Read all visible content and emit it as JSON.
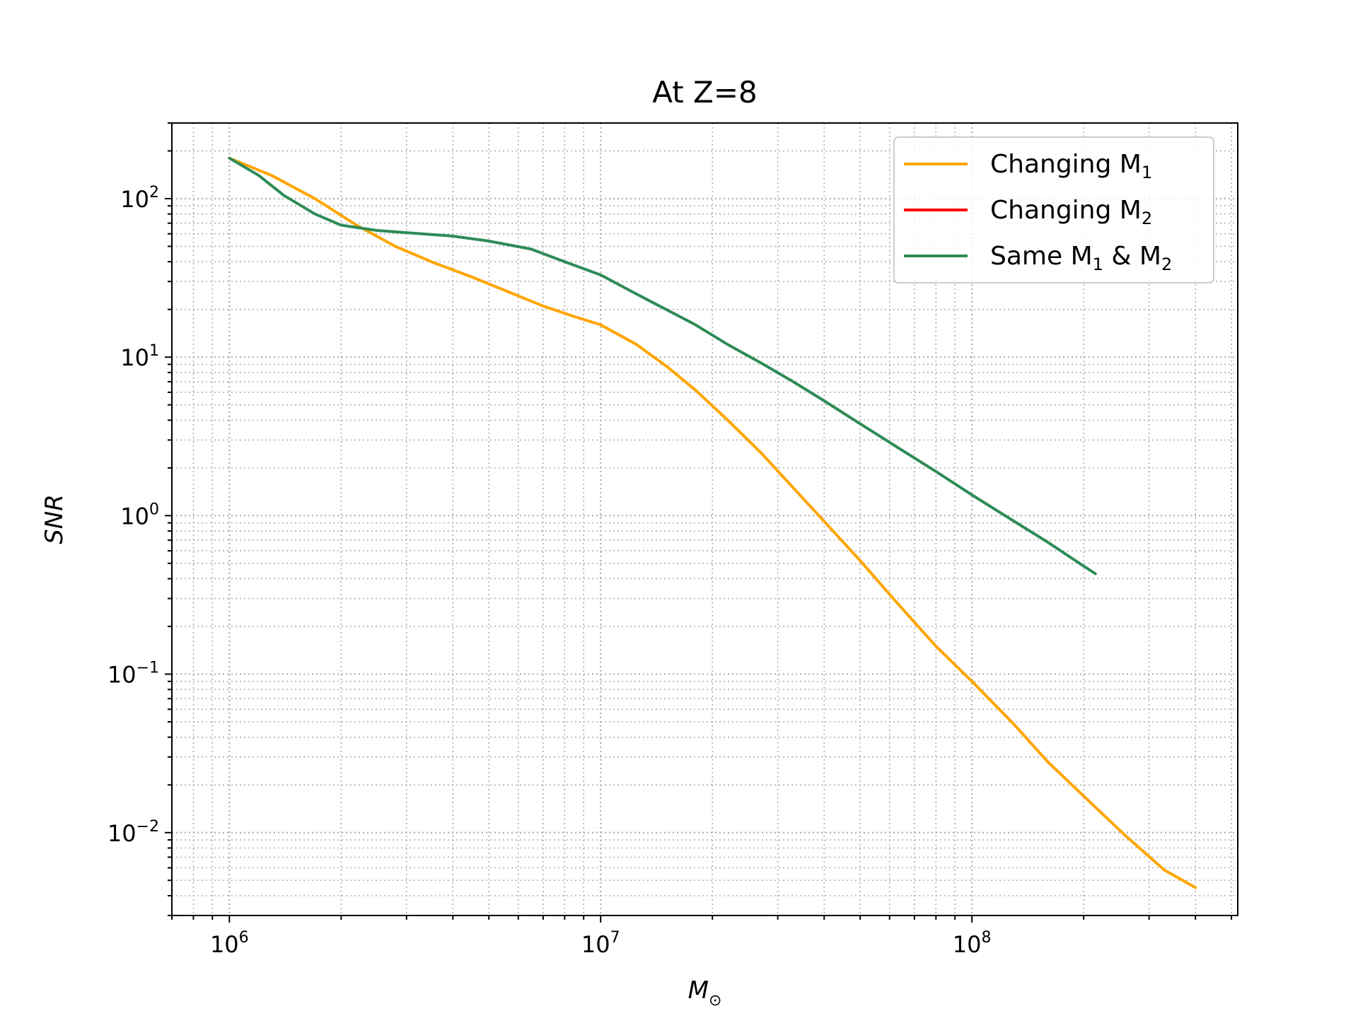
{
  "chart_data": {
    "type": "line",
    "title": "At Z=8",
    "xlabel": "M",
    "xlabel_subscript": "⊙",
    "ylabel": "SNR",
    "x_scale": "log",
    "y_scale": "log",
    "xlim": [
      700000,
      520000000
    ],
    "ylim": [
      0.003,
      300
    ],
    "x_ticks": [
      {
        "value": 1000000,
        "base": "10",
        "exp": "6"
      },
      {
        "value": 10000000,
        "base": "10",
        "exp": "7"
      },
      {
        "value": 100000000,
        "base": "10",
        "exp": "8"
      }
    ],
    "y_ticks": [
      {
        "value": 100,
        "base": "10",
        "exp": "2"
      },
      {
        "value": 10,
        "base": "10",
        "exp": "1"
      },
      {
        "value": 1,
        "base": "10",
        "exp": "0"
      },
      {
        "value": 0.1,
        "base": "10",
        "exp": "−1"
      },
      {
        "value": 0.01,
        "base": "10",
        "exp": "−2"
      }
    ],
    "grid": "both (major and minor, dotted)",
    "legend_position": "top-right",
    "series": [
      {
        "name": "Changing M1",
        "legend": {
          "text": "Changing M",
          "sub": "1",
          "suffix": "",
          "sub2": ""
        },
        "color": "#FFA500",
        "x": [
          1000000,
          1300000,
          1700000,
          2200000,
          2800000,
          3500000,
          4500000,
          5600000,
          7000000,
          8500000,
          10000000,
          12500000,
          15000000,
          18000000,
          22000000,
          27000000,
          33000000,
          40000000,
          50000000,
          63000000,
          80000000,
          100000000,
          130000000,
          160000000,
          200000000,
          260000000,
          330000000,
          400000000
        ],
        "y": [
          180,
          140,
          100,
          68,
          50,
          40,
          32,
          26,
          21,
          18,
          16,
          12,
          8.8,
          6.2,
          4.0,
          2.5,
          1.5,
          0.92,
          0.52,
          0.28,
          0.15,
          0.09,
          0.048,
          0.028,
          0.017,
          0.0095,
          0.0058,
          0.0045
        ]
      },
      {
        "name": "Changing M2",
        "legend": {
          "text": "Changing M",
          "sub": "2",
          "suffix": "",
          "sub2": ""
        },
        "color": "#FF0000",
        "x": [],
        "y": []
      },
      {
        "name": "Same M1 & M2",
        "legend": {
          "text": "Same M",
          "sub": "1",
          "suffix": " & M",
          "sub2": "2"
        },
        "color": "#2E8B57",
        "x": [
          1000000,
          1200000,
          1400000,
          1700000,
          2000000,
          2500000,
          3000000,
          4000000,
          5000000,
          6500000,
          8000000,
          10000000,
          12500000,
          15000000,
          18000000,
          22000000,
          27000000,
          33000000,
          40000000,
          50000000,
          63000000,
          80000000,
          100000000,
          130000000,
          160000000,
          200000000,
          215000000
        ],
        "y": [
          180,
          140,
          105,
          80,
          68,
          63,
          61,
          58,
          54,
          48,
          40,
          33,
          25,
          20,
          16,
          12,
          9.2,
          7.0,
          5.3,
          3.8,
          2.7,
          1.9,
          1.35,
          0.92,
          0.68,
          0.48,
          0.43
        ]
      }
    ]
  }
}
